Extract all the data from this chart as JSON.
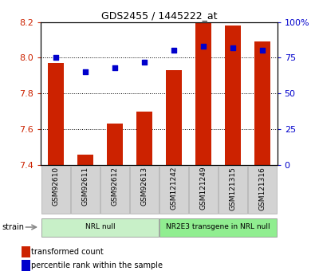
{
  "title": "GDS2455 / 1445222_at",
  "samples": [
    "GSM92610",
    "GSM92611",
    "GSM92612",
    "GSM92613",
    "GSM121242",
    "GSM121249",
    "GSM121315",
    "GSM121316"
  ],
  "transformed_counts": [
    7.97,
    7.46,
    7.63,
    7.7,
    7.93,
    8.21,
    8.18,
    8.09
  ],
  "percentile_ranks": [
    75,
    65,
    68,
    72,
    80,
    83,
    82,
    80
  ],
  "ylim_left": [
    7.4,
    8.2
  ],
  "ylim_right": [
    0,
    100
  ],
  "yticks_left": [
    7.4,
    7.6,
    7.8,
    8.0,
    8.2
  ],
  "yticks_right": [
    0,
    25,
    50,
    75,
    100
  ],
  "ytick_labels_right": [
    "0",
    "25",
    "50",
    "75",
    "100%"
  ],
  "bar_color": "#cc2200",
  "scatter_color": "#0000cc",
  "bar_bottom": 7.4,
  "groups": [
    {
      "label": "NRL null",
      "start": 0,
      "end": 4,
      "color": "#c8f0c8"
    },
    {
      "label": "NR2E3 transgene in NRL null",
      "start": 4,
      "end": 8,
      "color": "#90ee90"
    }
  ],
  "strain_label": "strain",
  "legend_items": [
    {
      "label": "transformed count",
      "color": "#cc2200"
    },
    {
      "label": "percentile rank within the sample",
      "color": "#0000cc"
    }
  ],
  "tick_color_left": "#cc2200",
  "tick_color_right": "#0000cc"
}
